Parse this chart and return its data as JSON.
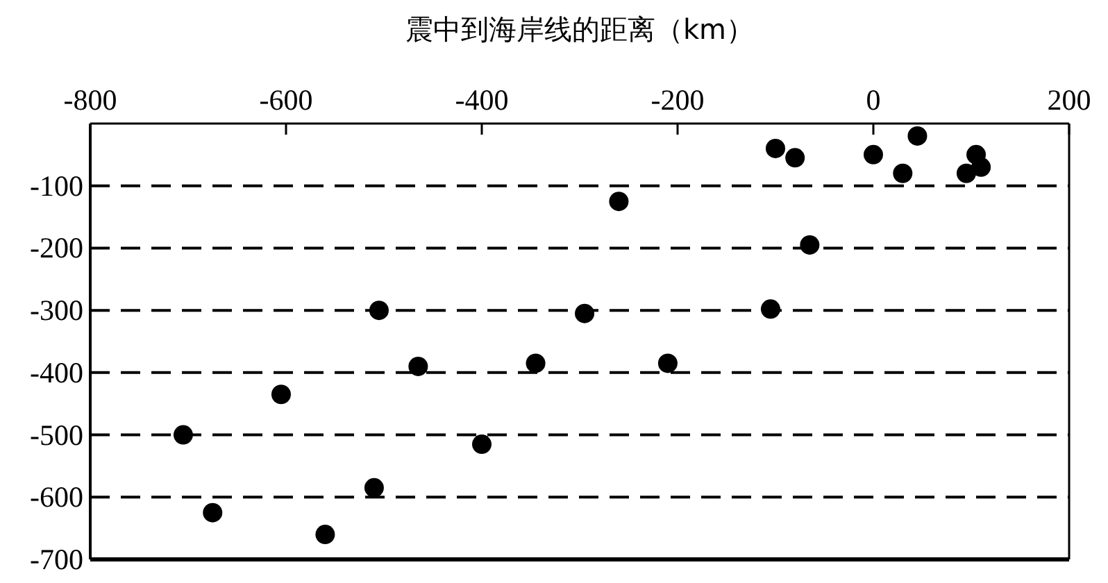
{
  "chart_data": {
    "type": "scatter",
    "xlabel": "震中到海岸线的距离（km）",
    "x": [
      -705,
      -675,
      -605,
      -560,
      -510,
      -505,
      -465,
      -400,
      -345,
      -295,
      -260,
      -210,
      -105,
      -100,
      -80,
      -65,
      0,
      30,
      45,
      95,
      105,
      110
    ],
    "series": [
      {
        "color": "#000000",
        "values": [
          -500,
          -625,
          -435,
          -660,
          -585,
          -300,
          -390,
          -515,
          -385,
          -305,
          -125,
          -385,
          -298,
          -40,
          -55,
          -195,
          -50,
          -80,
          -20,
          -80,
          -50,
          -70
        ]
      }
    ],
    "xlim": [
      -800,
      200
    ],
    "xticks": [
      -800,
      -600,
      -400,
      -200,
      0,
      200
    ],
    "ylim": [
      -700,
      0
    ],
    "yticks": [
      {
        "value": 0,
        "label": null
      },
      -100,
      -200,
      -300,
      -400,
      -500,
      -600,
      -700
    ],
    "grid": "y",
    "marker": "circle"
  }
}
